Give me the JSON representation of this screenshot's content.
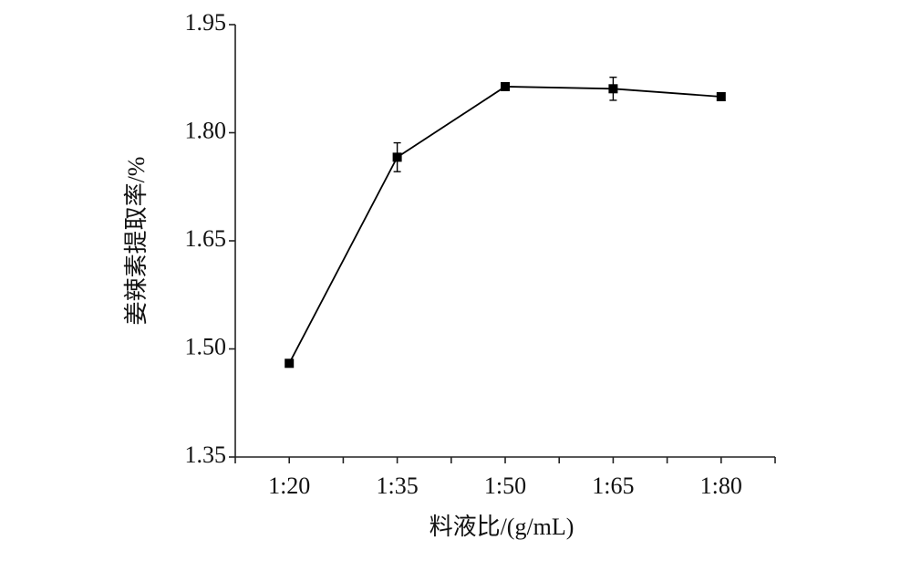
{
  "chart_data": {
    "type": "line",
    "x_label": "料液比/(g/mL)",
    "y_label": "姜辣素提取率/%",
    "categories": [
      "1:20",
      "1:35",
      "1:50",
      "1:65",
      "1:80"
    ],
    "series": [
      {
        "color": "#000000",
        "values": [
          1.48,
          1.766,
          1.864,
          1.861,
          1.85
        ],
        "errors": [
          0.004,
          0.02,
          0.003,
          0.016,
          0.005
        ]
      }
    ],
    "ylim": [
      1.35,
      1.95
    ],
    "yticks": [
      1.35,
      {
        "value": 1.5,
        "label": "1.50"
      },
      1.65,
      {
        "value": 1.8,
        "label": "1.80"
      },
      1.95
    ]
  }
}
